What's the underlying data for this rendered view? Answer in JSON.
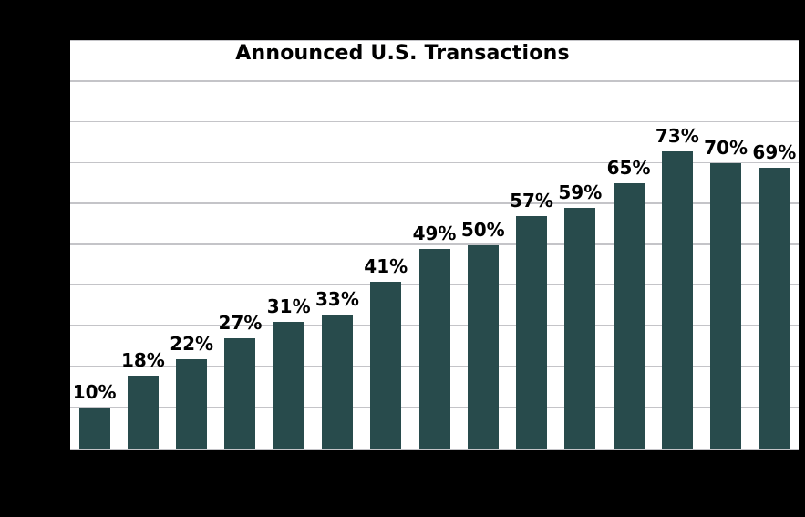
{
  "chart_data": {
    "type": "bar",
    "title": "Announced U.S. Transactions",
    "values": [
      10,
      18,
      22,
      27,
      31,
      33,
      41,
      49,
      50,
      57,
      59,
      65,
      73,
      70,
      69
    ],
    "bar_labels": [
      "10%",
      "18%",
      "22%",
      "27%",
      "31%",
      "33%",
      "41%",
      "49%",
      "50%",
      "57%",
      "59%",
      "65%",
      "73%",
      "70%",
      "69%"
    ],
    "xlabel": "",
    "ylabel": "",
    "x_tick_labels_visible": false,
    "y_tick_labels_visible": false,
    "ylim": [
      0,
      100
    ],
    "grid": true,
    "gridline_step": 10,
    "legend_position": "none",
    "colors": {
      "bar": "#284b4c",
      "plot_background": "#ffffff",
      "figure_background": "#000000",
      "gridline": "#c4c4c8",
      "title_text": "#000000",
      "bar_label_text": "#000000"
    }
  }
}
